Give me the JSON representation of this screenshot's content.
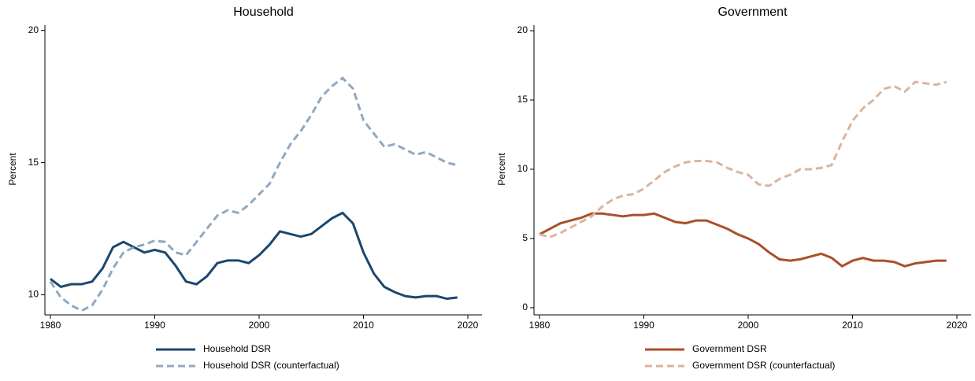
{
  "chart_data": [
    {
      "type": "line",
      "title": "Household",
      "y_label": "Percent",
      "legend": "bottom",
      "x": [
        1980,
        1981,
        1982,
        1983,
        1984,
        1985,
        1986,
        1987,
        1988,
        1989,
        1990,
        1991,
        1992,
        1993,
        1994,
        1995,
        1996,
        1997,
        1998,
        1999,
        2000,
        2001,
        2002,
        2003,
        2004,
        2005,
        2006,
        2007,
        2008,
        2009,
        2010,
        2011,
        2012,
        2013,
        2014,
        2015,
        2016,
        2017,
        2018,
        2019
      ],
      "xlim": [
        1980,
        2020
      ],
      "xticks": [
        1980,
        1990,
        2000,
        2010,
        2020
      ],
      "ylim": [
        9.3,
        20.2
      ],
      "yticks": [
        10,
        15,
        20
      ],
      "series": [
        {
          "name": "Household DSR",
          "color": "#1a476f",
          "style": "solid",
          "values": [
            10.6,
            10.3,
            10.4,
            10.4,
            10.5,
            11.0,
            11.8,
            12.0,
            11.8,
            11.6,
            11.7,
            11.6,
            11.1,
            10.5,
            10.4,
            10.7,
            11.2,
            11.3,
            11.3,
            11.2,
            11.5,
            11.9,
            12.4,
            12.3,
            12.2,
            12.3,
            12.6,
            12.9,
            13.1,
            12.7,
            11.6,
            10.8,
            10.3,
            10.1,
            9.95,
            9.9,
            9.95,
            9.95,
            9.85,
            9.9
          ]
        },
        {
          "name": "Household DSR (counterfactual)",
          "color": "#90a8c0",
          "style": "dashed",
          "values": [
            10.5,
            9.9,
            9.6,
            9.4,
            9.6,
            10.2,
            11.0,
            11.6,
            11.8,
            11.9,
            12.05,
            12.0,
            11.6,
            11.5,
            12.0,
            12.5,
            13.0,
            13.2,
            13.1,
            13.4,
            13.8,
            14.2,
            15.0,
            15.7,
            16.2,
            16.8,
            17.5,
            17.9,
            18.2,
            17.8,
            16.6,
            16.1,
            15.6,
            15.7,
            15.5,
            15.3,
            15.4,
            15.2,
            15.0,
            14.9
          ]
        }
      ]
    },
    {
      "type": "line",
      "title": "Government",
      "y_label": "Percent",
      "legend": "bottom",
      "x": [
        1980,
        1981,
        1982,
        1983,
        1984,
        1985,
        1986,
        1987,
        1988,
        1989,
        1990,
        1991,
        1992,
        1993,
        1994,
        1995,
        1996,
        1997,
        1998,
        1999,
        2000,
        2001,
        2002,
        2003,
        2004,
        2005,
        2006,
        2007,
        2008,
        2009,
        2010,
        2011,
        2012,
        2013,
        2014,
        2015,
        2016,
        2017,
        2018,
        2019
      ],
      "xlim": [
        1980,
        2020
      ],
      "xticks": [
        1980,
        1990,
        2000,
        2010,
        2020
      ],
      "ylim": [
        -0.4,
        20.4
      ],
      "yticks": [
        0,
        5,
        10,
        15,
        20
      ],
      "series": [
        {
          "name": "Government DSR",
          "color": "#a9502a",
          "style": "solid",
          "values": [
            5.3,
            5.7,
            6.1,
            6.3,
            6.5,
            6.8,
            6.8,
            6.7,
            6.6,
            6.7,
            6.7,
            6.8,
            6.5,
            6.2,
            6.1,
            6.3,
            6.3,
            6.0,
            5.7,
            5.3,
            5.0,
            4.6,
            4.0,
            3.5,
            3.4,
            3.5,
            3.7,
            3.9,
            3.6,
            3.0,
            3.4,
            3.6,
            3.4,
            3.4,
            3.3,
            3.0,
            3.2,
            3.3,
            3.4,
            3.4
          ]
        },
        {
          "name": "Government DSR (counterfactual)",
          "color": "#ddb39b",
          "style": "dashed",
          "values": [
            5.3,
            5.1,
            5.4,
            5.8,
            6.2,
            6.6,
            7.3,
            7.8,
            8.1,
            8.2,
            8.6,
            9.2,
            9.8,
            10.2,
            10.5,
            10.6,
            10.6,
            10.5,
            10.1,
            9.8,
            9.6,
            8.9,
            8.8,
            9.3,
            9.6,
            10.0,
            10.0,
            10.1,
            10.3,
            12.0,
            13.5,
            14.4,
            15.0,
            15.8,
            16.0,
            15.6,
            16.3,
            16.2,
            16.1,
            16.3
          ]
        }
      ]
    }
  ]
}
